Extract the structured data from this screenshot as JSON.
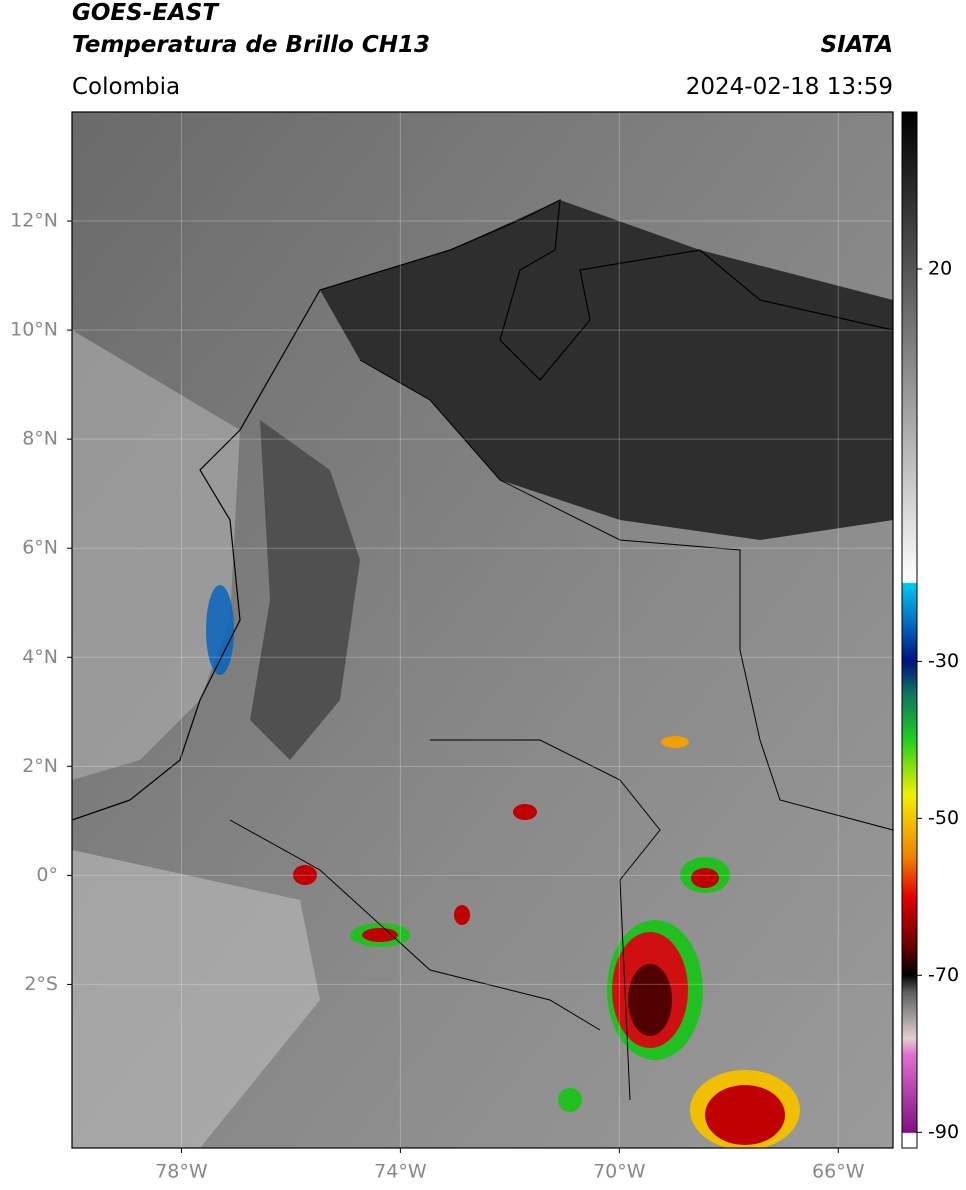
{
  "header": {
    "title_line1": "GOES-EAST",
    "title_line2": "Temperatura de Brillo CH13",
    "source": "SIATA",
    "region": "Colombia",
    "datetime": "2024-02-18 13:59"
  },
  "map": {
    "lon_range": [
      -80,
      -65
    ],
    "lat_range": [
      -5,
      14
    ],
    "lat_ticks": [
      {
        "value": 12,
        "label": "12°N"
      },
      {
        "value": 10,
        "label": "10°N"
      },
      {
        "value": 8,
        "label": "8°N"
      },
      {
        "value": 6,
        "label": "6°N"
      },
      {
        "value": 4,
        "label": "4°N"
      },
      {
        "value": 2,
        "label": "2°N"
      },
      {
        "value": 0,
        "label": "0°"
      },
      {
        "value": -2,
        "label": "2°S"
      }
    ],
    "lon_ticks": [
      {
        "value": -78,
        "label": "78°W"
      },
      {
        "value": -74,
        "label": "74°W"
      },
      {
        "value": -70,
        "label": "70°W"
      },
      {
        "value": -66,
        "label": "66°W"
      }
    ]
  },
  "colorbar": {
    "range": [
      -92,
      40
    ],
    "ticks": [
      20,
      -30,
      -50,
      -70,
      -90
    ]
  }
}
